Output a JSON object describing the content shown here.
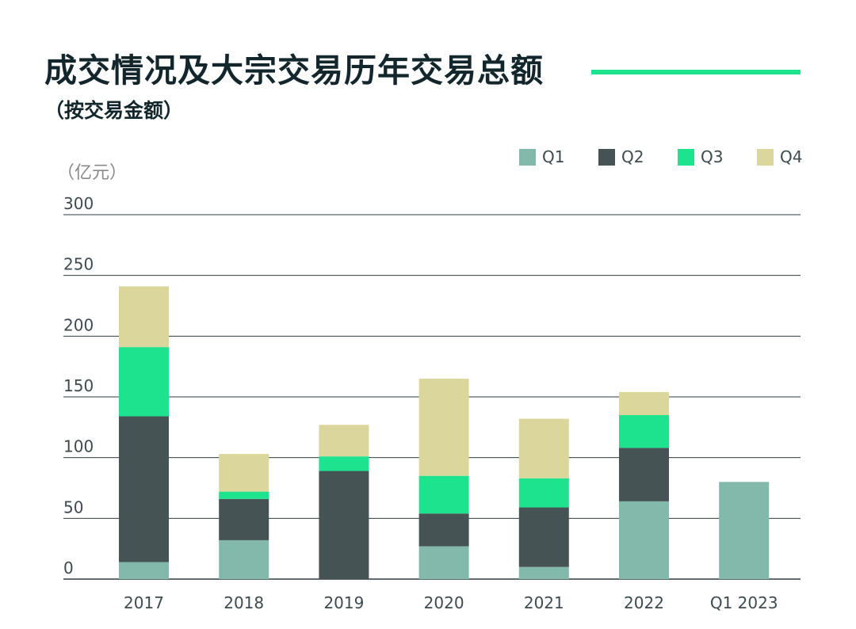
{
  "header": {
    "title": "成交情况及大宗交易历年交易总额",
    "subtitle": "（按交易金额）"
  },
  "chart_data": {
    "type": "bar",
    "stacked": true,
    "unit_label": "（亿元）",
    "categories": [
      "2017",
      "2018",
      "2019",
      "2020",
      "2021",
      "2022",
      "Q1 2023"
    ],
    "series": [
      {
        "name": "Q1",
        "color": "#83b9aa",
        "values": [
          14,
          32,
          0,
          27,
          10,
          64,
          80
        ]
      },
      {
        "name": "Q2",
        "color": "#465355",
        "values": [
          120,
          34,
          89,
          27,
          49,
          44,
          0
        ]
      },
      {
        "name": "Q3",
        "color": "#1ee38e",
        "values": [
          57,
          6,
          12,
          31,
          24,
          27,
          0
        ]
      },
      {
        "name": "Q4",
        "color": "#dbd69b",
        "values": [
          50,
          31,
          26,
          80,
          49,
          19,
          0
        ]
      }
    ],
    "ylim": [
      0,
      300
    ],
    "yticks": [
      0,
      50,
      100,
      150,
      200,
      250,
      300
    ],
    "legend_position": "top-right",
    "grid": true
  }
}
